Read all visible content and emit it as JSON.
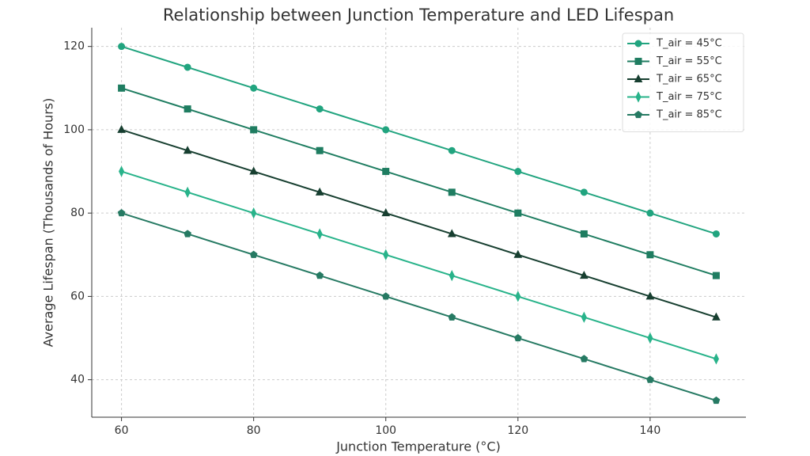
{
  "chart_data": {
    "type": "line",
    "title": "Relationship between Junction Temperature and LED Lifespan",
    "x_label": "Junction Temperature (°C)",
    "y_label": "Average Lifespan (Thousands of Hours)",
    "x": [
      60,
      70,
      80,
      90,
      100,
      110,
      120,
      130,
      140,
      150
    ],
    "series": [
      {
        "name": "T_air = 45°C",
        "color": "#21a47f",
        "marker": "circle",
        "values": [
          120,
          115,
          110,
          105,
          100,
          95,
          90,
          85,
          80,
          75
        ]
      },
      {
        "name": "T_air = 55°C",
        "color": "#1f7d61",
        "marker": "square",
        "values": [
          110,
          105,
          100,
          95,
          90,
          85,
          80,
          75,
          70,
          65
        ]
      },
      {
        "name": "T_air = 65°C",
        "color": "#173f30",
        "marker": "triangle",
        "values": [
          100,
          95,
          90,
          85,
          80,
          75,
          70,
          65,
          60,
          55
        ]
      },
      {
        "name": "T_air = 75°C",
        "color": "#28b38a",
        "marker": "thin-diamond",
        "values": [
          90,
          85,
          80,
          75,
          70,
          65,
          60,
          55,
          50,
          45
        ]
      },
      {
        "name": "T_air = 85°C",
        "color": "#267a63",
        "marker": "pentagon",
        "values": [
          80,
          75,
          70,
          65,
          60,
          55,
          50,
          45,
          40,
          35
        ]
      }
    ],
    "xlim": [
      55.5,
      154.5
    ],
    "xticks": [
      60,
      80,
      100,
      120,
      140
    ],
    "ylim": [
      31,
      124.5
    ],
    "yticks": [
      40,
      60,
      80,
      100,
      120
    ],
    "grid": true,
    "legend": "upper-right"
  }
}
